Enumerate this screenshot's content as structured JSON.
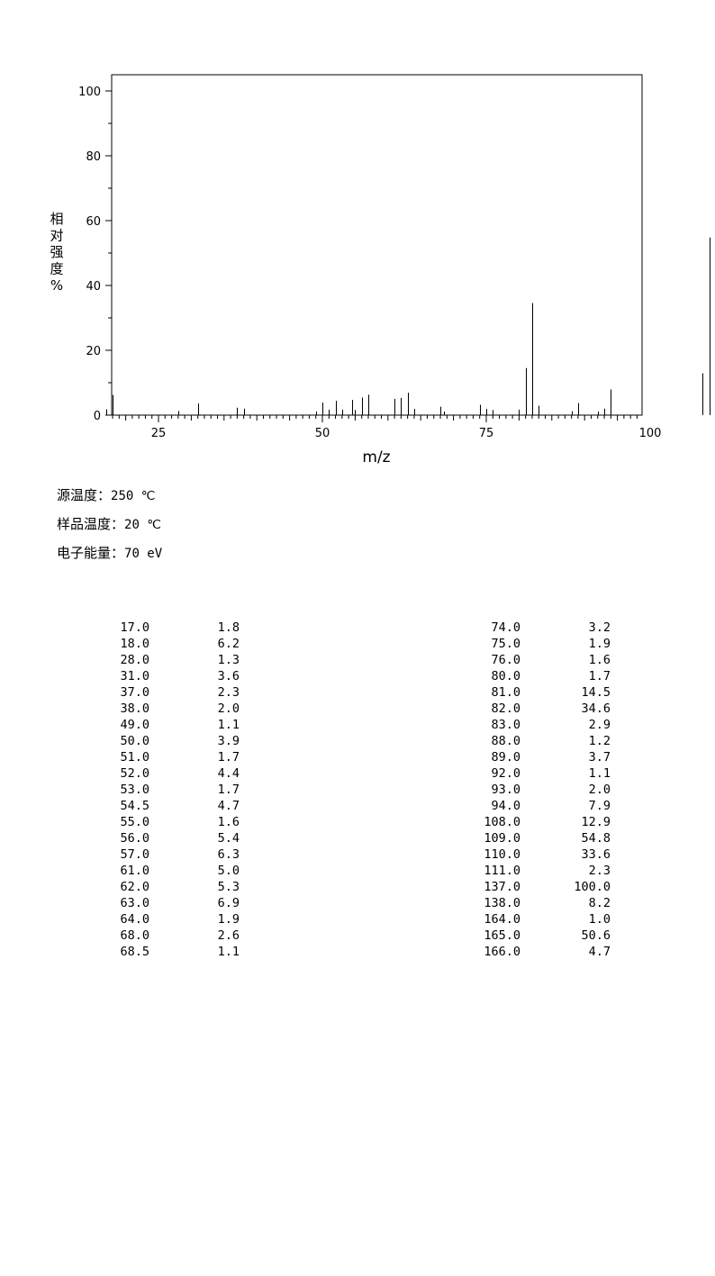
{
  "chart_data": {
    "type": "bar",
    "xlabel": "m/z",
    "ylabel": "相对强度%",
    "xlim": [
      10,
      171
    ],
    "ylim": [
      0,
      105
    ],
    "xticks": [
      25,
      50,
      75,
      100,
      125,
      150
    ],
    "yticks": [
      0,
      20,
      40,
      60,
      80,
      100
    ],
    "grid": false,
    "peaks": [
      {
        "x": 17.0,
        "y": 1.8
      },
      {
        "x": 18.0,
        "y": 6.2
      },
      {
        "x": 28.0,
        "y": 1.3
      },
      {
        "x": 31.0,
        "y": 3.6
      },
      {
        "x": 37.0,
        "y": 2.3
      },
      {
        "x": 38.0,
        "y": 2.0
      },
      {
        "x": 49.0,
        "y": 1.1
      },
      {
        "x": 50.0,
        "y": 3.9
      },
      {
        "x": 51.0,
        "y": 1.7
      },
      {
        "x": 52.0,
        "y": 4.4
      },
      {
        "x": 53.0,
        "y": 1.7
      },
      {
        "x": 54.5,
        "y": 4.7
      },
      {
        "x": 55.0,
        "y": 1.6
      },
      {
        "x": 56.0,
        "y": 5.4
      },
      {
        "x": 57.0,
        "y": 6.3
      },
      {
        "x": 61.0,
        "y": 5.0
      },
      {
        "x": 62.0,
        "y": 5.3
      },
      {
        "x": 63.0,
        "y": 6.9
      },
      {
        "x": 64.0,
        "y": 1.9
      },
      {
        "x": 68.0,
        "y": 2.6
      },
      {
        "x": 68.5,
        "y": 1.1
      },
      {
        "x": 74.0,
        "y": 3.2
      },
      {
        "x": 75.0,
        "y": 1.9
      },
      {
        "x": 76.0,
        "y": 1.6
      },
      {
        "x": 80.0,
        "y": 1.7
      },
      {
        "x": 81.0,
        "y": 14.5
      },
      {
        "x": 82.0,
        "y": 34.6
      },
      {
        "x": 83.0,
        "y": 2.9
      },
      {
        "x": 88.0,
        "y": 1.2
      },
      {
        "x": 89.0,
        "y": 3.7
      },
      {
        "x": 92.0,
        "y": 1.1
      },
      {
        "x": 93.0,
        "y": 2.0
      },
      {
        "x": 94.0,
        "y": 7.9
      },
      {
        "x": 108.0,
        "y": 12.9
      },
      {
        "x": 109.0,
        "y": 54.8
      },
      {
        "x": 110.0,
        "y": 33.6
      },
      {
        "x": 111.0,
        "y": 2.3
      },
      {
        "x": 137.0,
        "y": 100.0
      },
      {
        "x": 138.0,
        "y": 8.2
      },
      {
        "x": 164.0,
        "y": 1.0
      },
      {
        "x": 165.0,
        "y": 50.6
      },
      {
        "x": 166.0,
        "y": 4.7
      }
    ]
  },
  "info": [
    {
      "label": "源温度：",
      "value": "250 ℃"
    },
    {
      "label": "样品温度：",
      "value": "20 ℃"
    },
    {
      "label": "电子能量：",
      "value": "70 eV"
    }
  ],
  "table": {
    "left": [
      [
        "17.0",
        "1.8"
      ],
      [
        "18.0",
        "6.2"
      ],
      [
        "28.0",
        "1.3"
      ],
      [
        "31.0",
        "3.6"
      ],
      [
        "37.0",
        "2.3"
      ],
      [
        "38.0",
        "2.0"
      ],
      [
        "49.0",
        "1.1"
      ],
      [
        "50.0",
        "3.9"
      ],
      [
        "51.0",
        "1.7"
      ],
      [
        "52.0",
        "4.4"
      ],
      [
        "53.0",
        "1.7"
      ],
      [
        "54.5",
        "4.7"
      ],
      [
        "55.0",
        "1.6"
      ],
      [
        "56.0",
        "5.4"
      ],
      [
        "57.0",
        "6.3"
      ],
      [
        "61.0",
        "5.0"
      ],
      [
        "62.0",
        "5.3"
      ],
      [
        "63.0",
        "6.9"
      ],
      [
        "64.0",
        "1.9"
      ],
      [
        "68.0",
        "2.6"
      ],
      [
        "68.5",
        "1.1"
      ]
    ],
    "right": [
      [
        "74.0",
        "3.2"
      ],
      [
        "75.0",
        "1.9"
      ],
      [
        "76.0",
        "1.6"
      ],
      [
        "80.0",
        "1.7"
      ],
      [
        "81.0",
        "14.5"
      ],
      [
        "82.0",
        "34.6"
      ],
      [
        "83.0",
        "2.9"
      ],
      [
        "88.0",
        "1.2"
      ],
      [
        "89.0",
        "3.7"
      ],
      [
        "92.0",
        "1.1"
      ],
      [
        "93.0",
        "2.0"
      ],
      [
        "94.0",
        "7.9"
      ],
      [
        "108.0",
        "12.9"
      ],
      [
        "109.0",
        "54.8"
      ],
      [
        "110.0",
        "33.6"
      ],
      [
        "111.0",
        "2.3"
      ],
      [
        "137.0",
        "100.0"
      ],
      [
        "138.0",
        "8.2"
      ],
      [
        "164.0",
        "1.0"
      ],
      [
        "165.0",
        "50.6"
      ],
      [
        "166.0",
        "4.7"
      ]
    ]
  }
}
